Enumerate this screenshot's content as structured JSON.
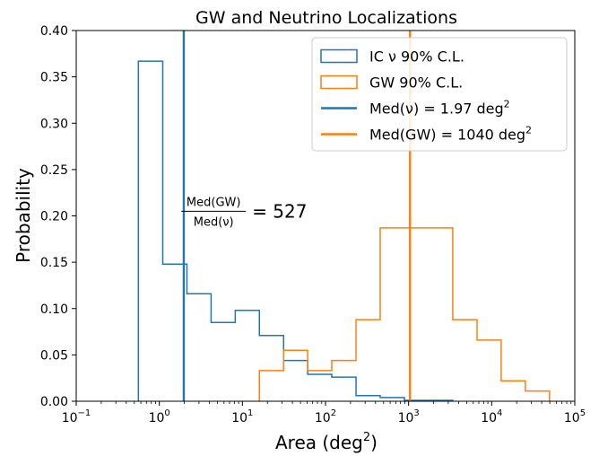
{
  "chart_data": {
    "type": "histogram",
    "title": "GW and Neutrino Localizations",
    "xlabel": "Area (deg",
    "xlabel_sup": "2",
    "xlabel_suffix": ")",
    "ylabel": "Probability",
    "x_scale": "log",
    "xlim": [
      0.1,
      100000
    ],
    "ylim": [
      0,
      0.4
    ],
    "x_ticks": [
      {
        "value": 0.1,
        "base": "10",
        "exp": "−1"
      },
      {
        "value": 1,
        "base": "10",
        "exp": "0"
      },
      {
        "value": 10,
        "base": "10",
        "exp": "1"
      },
      {
        "value": 100,
        "base": "10",
        "exp": "2"
      },
      {
        "value": 1000,
        "base": "10",
        "exp": "3"
      },
      {
        "value": 10000,
        "base": "10",
        "exp": "4"
      },
      {
        "value": 100000,
        "base": "10",
        "exp": "5"
      }
    ],
    "y_ticks": [
      {
        "value": 0.0,
        "label": "0.00"
      },
      {
        "value": 0.05,
        "label": "0.05"
      },
      {
        "value": 0.1,
        "label": "0.10"
      },
      {
        "value": 0.15,
        "label": "0.15"
      },
      {
        "value": 0.2,
        "label": "0.20"
      },
      {
        "value": 0.25,
        "label": "0.25"
      },
      {
        "value": 0.3,
        "label": "0.30"
      },
      {
        "value": 0.35,
        "label": "0.35"
      },
      {
        "value": 0.4,
        "label": "0.40"
      }
    ],
    "grid": false,
    "legend_position": "top-right",
    "colors": {
      "neutrino": "#1f77b4",
      "gw": "#ff7f0e"
    },
    "series": [
      {
        "name": "IC ν 90% C.L.",
        "kind": "step-histogram",
        "color": "#1f77b4",
        "edges": [
          0.56,
          1.1,
          2.15,
          4.2,
          8.2,
          16.0,
          31.3,
          61.0,
          119.0,
          233.0,
          455.0,
          890.0,
          1740.0,
          3400.0
        ],
        "values": [
          0.367,
          0.148,
          0.116,
          0.085,
          0.098,
          0.071,
          0.044,
          0.029,
          0.026,
          0.006,
          0.004,
          0.001,
          0.001
        ]
      },
      {
        "name": "GW 90% C.L.",
        "kind": "step-histogram",
        "color": "#ff7f0e",
        "edges": [
          16.0,
          31.3,
          61.0,
          119.0,
          233.0,
          455.0,
          890.0,
          1740.0,
          3400.0,
          6660.0,
          13000.0,
          25400.0,
          49700.0
        ],
        "values": [
          0.033,
          0.055,
          0.033,
          0.044,
          0.088,
          0.187,
          0.187,
          0.187,
          0.088,
          0.066,
          0.022,
          0.011
        ]
      },
      {
        "name": "Med(ν) = 1.97 deg",
        "name_sup": "2",
        "kind": "vline",
        "color": "#1f77b4",
        "x": 1.97
      },
      {
        "name": "Med(GW) = 1040 deg",
        "name_sup": "2",
        "kind": "vline",
        "color": "#ff7f0e",
        "x": 1040
      }
    ],
    "annotation": {
      "numerator": "Med(GW)",
      "denominator": "Med(ν)",
      "value": "= 527",
      "x": 4.5,
      "y": 0.205
    }
  }
}
